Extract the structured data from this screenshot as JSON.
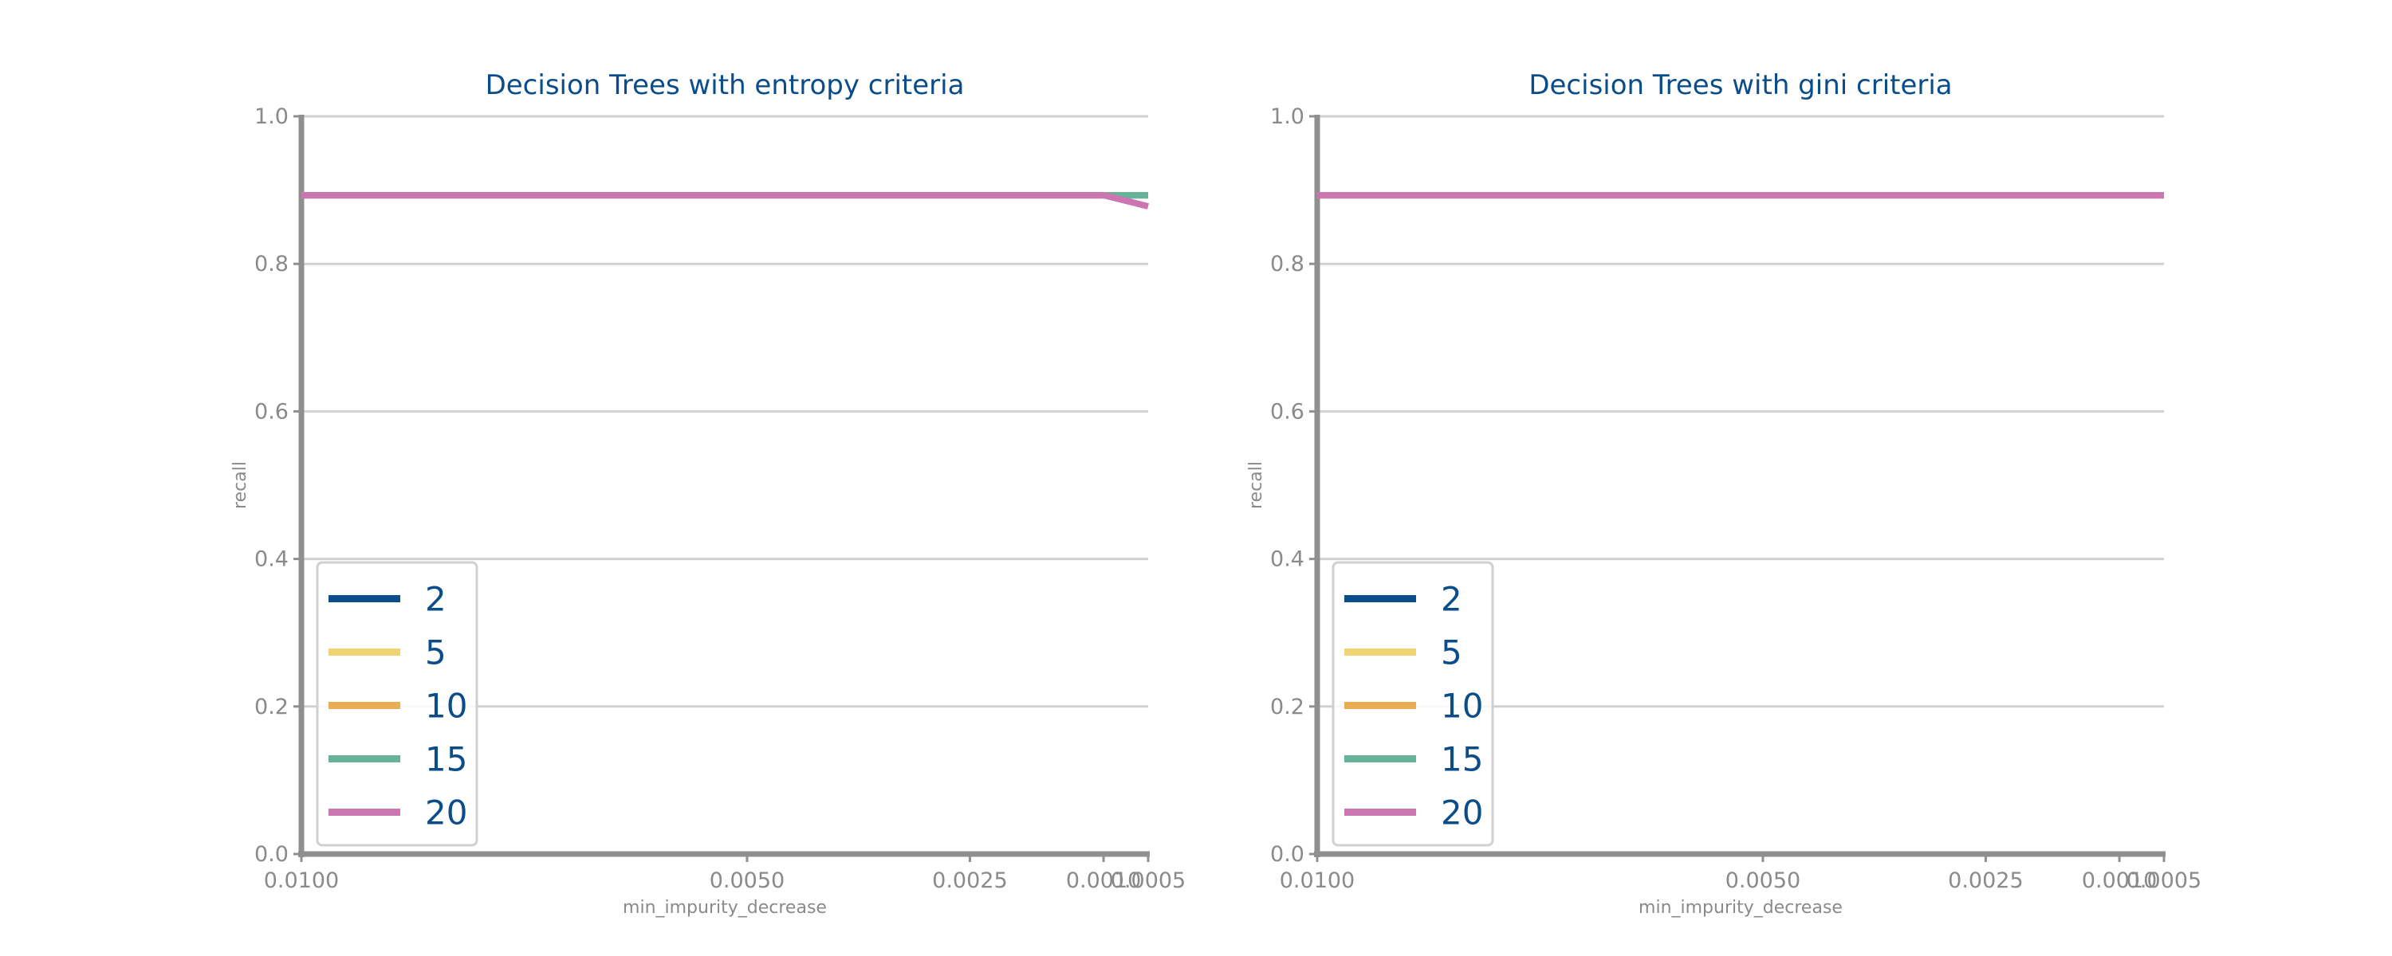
{
  "chart_data": [
    {
      "type": "line",
      "title": "Decision Trees with entropy criteria",
      "xlabel": "min_impurity_decrease",
      "ylabel": "recall",
      "x": [
        0.01,
        0.005,
        0.0025,
        0.001,
        0.0005
      ],
      "x_tick_labels": [
        "0.0100",
        "0.0050",
        "0.0025",
        "0.0010",
        "0.0005"
      ],
      "xlim": [
        0.01,
        0.0005
      ],
      "ylim": [
        0.0,
        1.0
      ],
      "y_ticks": [
        0.0,
        0.2,
        0.4,
        0.6,
        0.8,
        1.0
      ],
      "y_tick_labels": [
        "0.0",
        "0.2",
        "0.4",
        "0.6",
        "0.8",
        "1.0"
      ],
      "grid": "horizontal",
      "legend_position": "lower-left",
      "series": [
        {
          "name": "2",
          "color": "#0b4d8a",
          "values": [
            0.893,
            0.893,
            0.893,
            0.893,
            0.893
          ]
        },
        {
          "name": "5",
          "color": "#f0d373",
          "values": [
            0.893,
            0.893,
            0.893,
            0.893,
            0.893
          ]
        },
        {
          "name": "10",
          "color": "#e9ad53",
          "values": [
            0.893,
            0.893,
            0.893,
            0.893,
            0.893
          ]
        },
        {
          "name": "15",
          "color": "#66b39a",
          "values": [
            0.893,
            0.893,
            0.893,
            0.893,
            0.893
          ]
        },
        {
          "name": "20",
          "color": "#cb76b1",
          "values": [
            0.893,
            0.893,
            0.893,
            0.893,
            0.878
          ]
        }
      ]
    },
    {
      "type": "line",
      "title": "Decision Trees with gini criteria",
      "xlabel": "min_impurity_decrease",
      "ylabel": "recall",
      "x": [
        0.01,
        0.005,
        0.0025,
        0.001,
        0.0005
      ],
      "x_tick_labels": [
        "0.0100",
        "0.0050",
        "0.0025",
        "0.0010",
        "0.0005"
      ],
      "xlim": [
        0.01,
        0.0005
      ],
      "ylim": [
        0.0,
        1.0
      ],
      "y_ticks": [
        0.0,
        0.2,
        0.4,
        0.6,
        0.8,
        1.0
      ],
      "y_tick_labels": [
        "0.0",
        "0.2",
        "0.4",
        "0.6",
        "0.8",
        "1.0"
      ],
      "grid": "horizontal",
      "legend_position": "lower-left",
      "series": [
        {
          "name": "2",
          "color": "#0b4d8a",
          "values": [
            0.893,
            0.893,
            0.893,
            0.893,
            0.893
          ]
        },
        {
          "name": "5",
          "color": "#f0d373",
          "values": [
            0.893,
            0.893,
            0.893,
            0.893,
            0.893
          ]
        },
        {
          "name": "10",
          "color": "#e9ad53",
          "values": [
            0.893,
            0.893,
            0.893,
            0.893,
            0.893
          ]
        },
        {
          "name": "15",
          "color": "#66b39a",
          "values": [
            0.893,
            0.893,
            0.893,
            0.893,
            0.893
          ]
        },
        {
          "name": "20",
          "color": "#cb76b1",
          "values": [
            0.893,
            0.893,
            0.893,
            0.893,
            0.893
          ]
        }
      ]
    }
  ]
}
